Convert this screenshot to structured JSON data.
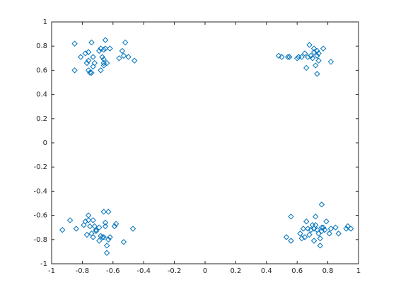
{
  "chart_data": {
    "type": "scatter",
    "color": "#0072bd",
    "marker": "diamond",
    "xlim": [
      -1,
      1
    ],
    "ylim": [
      -1,
      1
    ],
    "xticks": [
      -1,
      -0.8,
      -0.6,
      -0.4,
      -0.2,
      0,
      0.2,
      0.4,
      0.6,
      0.8,
      1
    ],
    "yticks": [
      -1,
      -0.8,
      -0.6,
      -0.4,
      -0.2,
      0,
      0.2,
      0.4,
      0.6,
      0.8,
      1
    ],
    "x": [
      -0.85,
      -0.85,
      -0.81,
      -0.78,
      -0.77,
      -0.76,
      -0.76,
      -0.76,
      -0.75,
      -0.74,
      -0.73,
      -0.73,
      -0.72,
      -0.69,
      -0.68,
      -0.67,
      -0.66,
      -0.66,
      -0.65,
      -0.66,
      -0.66,
      -0.65,
      -0.64,
      -0.62,
      -0.56,
      -0.54,
      -0.53,
      -0.52,
      -0.5,
      -0.46,
      -0.68,
      -0.74,
      0.48,
      0.5,
      0.54,
      0.55,
      0.6,
      0.61,
      0.63,
      0.65,
      0.66,
      0.68,
      0.69,
      0.7,
      0.71,
      0.71,
      0.72,
      0.73,
      0.73,
      0.73,
      0.74,
      0.77,
      0.82,
      0.67,
      0.74,
      -0.93,
      -0.88,
      -0.84,
      -0.79,
      -0.78,
      -0.77,
      -0.76,
      -0.76,
      -0.75,
      -0.74,
      -0.73,
      -0.73,
      -0.72,
      -0.71,
      -0.71,
      -0.69,
      -0.68,
      -0.67,
      -0.66,
      -0.66,
      -0.65,
      -0.65,
      -0.64,
      -0.63,
      -0.63,
      -0.62,
      -0.59,
      -0.58,
      -0.53,
      -0.47,
      -0.69,
      -0.64,
      0.53,
      0.56,
      0.56,
      0.62,
      0.63,
      0.64,
      0.65,
      0.66,
      0.67,
      0.68,
      0.69,
      0.7,
      0.71,
      0.71,
      0.72,
      0.72,
      0.73,
      0.74,
      0.75,
      0.75,
      0.76,
      0.76,
      0.76,
      0.77,
      0.78,
      0.79,
      0.81,
      0.82,
      0.85,
      0.87,
      0.92,
      0.93,
      0.95
    ],
    "y": [
      0.82,
      0.6,
      0.71,
      0.74,
      0.66,
      0.75,
      0.68,
      0.6,
      0.58,
      0.83,
      0.71,
      0.63,
      0.66,
      0.76,
      0.78,
      0.71,
      0.77,
      0.69,
      0.85,
      0.66,
      0.64,
      0.78,
      0.66,
      0.78,
      0.7,
      0.76,
      0.72,
      0.83,
      0.71,
      0.68,
      0.6,
      0.58,
      0.72,
      0.71,
      0.71,
      0.71,
      0.7,
      0.71,
      0.71,
      0.74,
      0.62,
      0.81,
      0.72,
      0.7,
      0.75,
      0.78,
      0.64,
      0.72,
      0.76,
      0.57,
      0.68,
      0.78,
      0.67,
      0.71,
      0.74,
      -0.72,
      -0.64,
      -0.71,
      -0.68,
      -0.65,
      -0.76,
      -0.64,
      -0.6,
      -0.69,
      -0.75,
      -0.78,
      -0.64,
      -0.69,
      -0.72,
      -0.73,
      -0.7,
      -0.77,
      -0.78,
      -0.78,
      -0.57,
      -0.69,
      -0.66,
      -0.91,
      -0.57,
      -0.8,
      -0.78,
      -0.69,
      -0.67,
      -0.82,
      -0.71,
      -0.81,
      -0.85,
      -0.78,
      -0.61,
      -0.81,
      -0.75,
      -0.79,
      -0.71,
      -0.78,
      -0.65,
      -0.71,
      -0.76,
      -0.72,
      -0.68,
      -0.81,
      -0.71,
      -0.61,
      -0.68,
      -0.72,
      -0.75,
      -0.79,
      -0.85,
      -0.7,
      -0.73,
      -0.51,
      -0.7,
      -0.72,
      -0.65,
      -0.75,
      -0.71,
      -0.7,
      -0.75,
      -0.71,
      -0.69,
      -0.71
    ]
  }
}
